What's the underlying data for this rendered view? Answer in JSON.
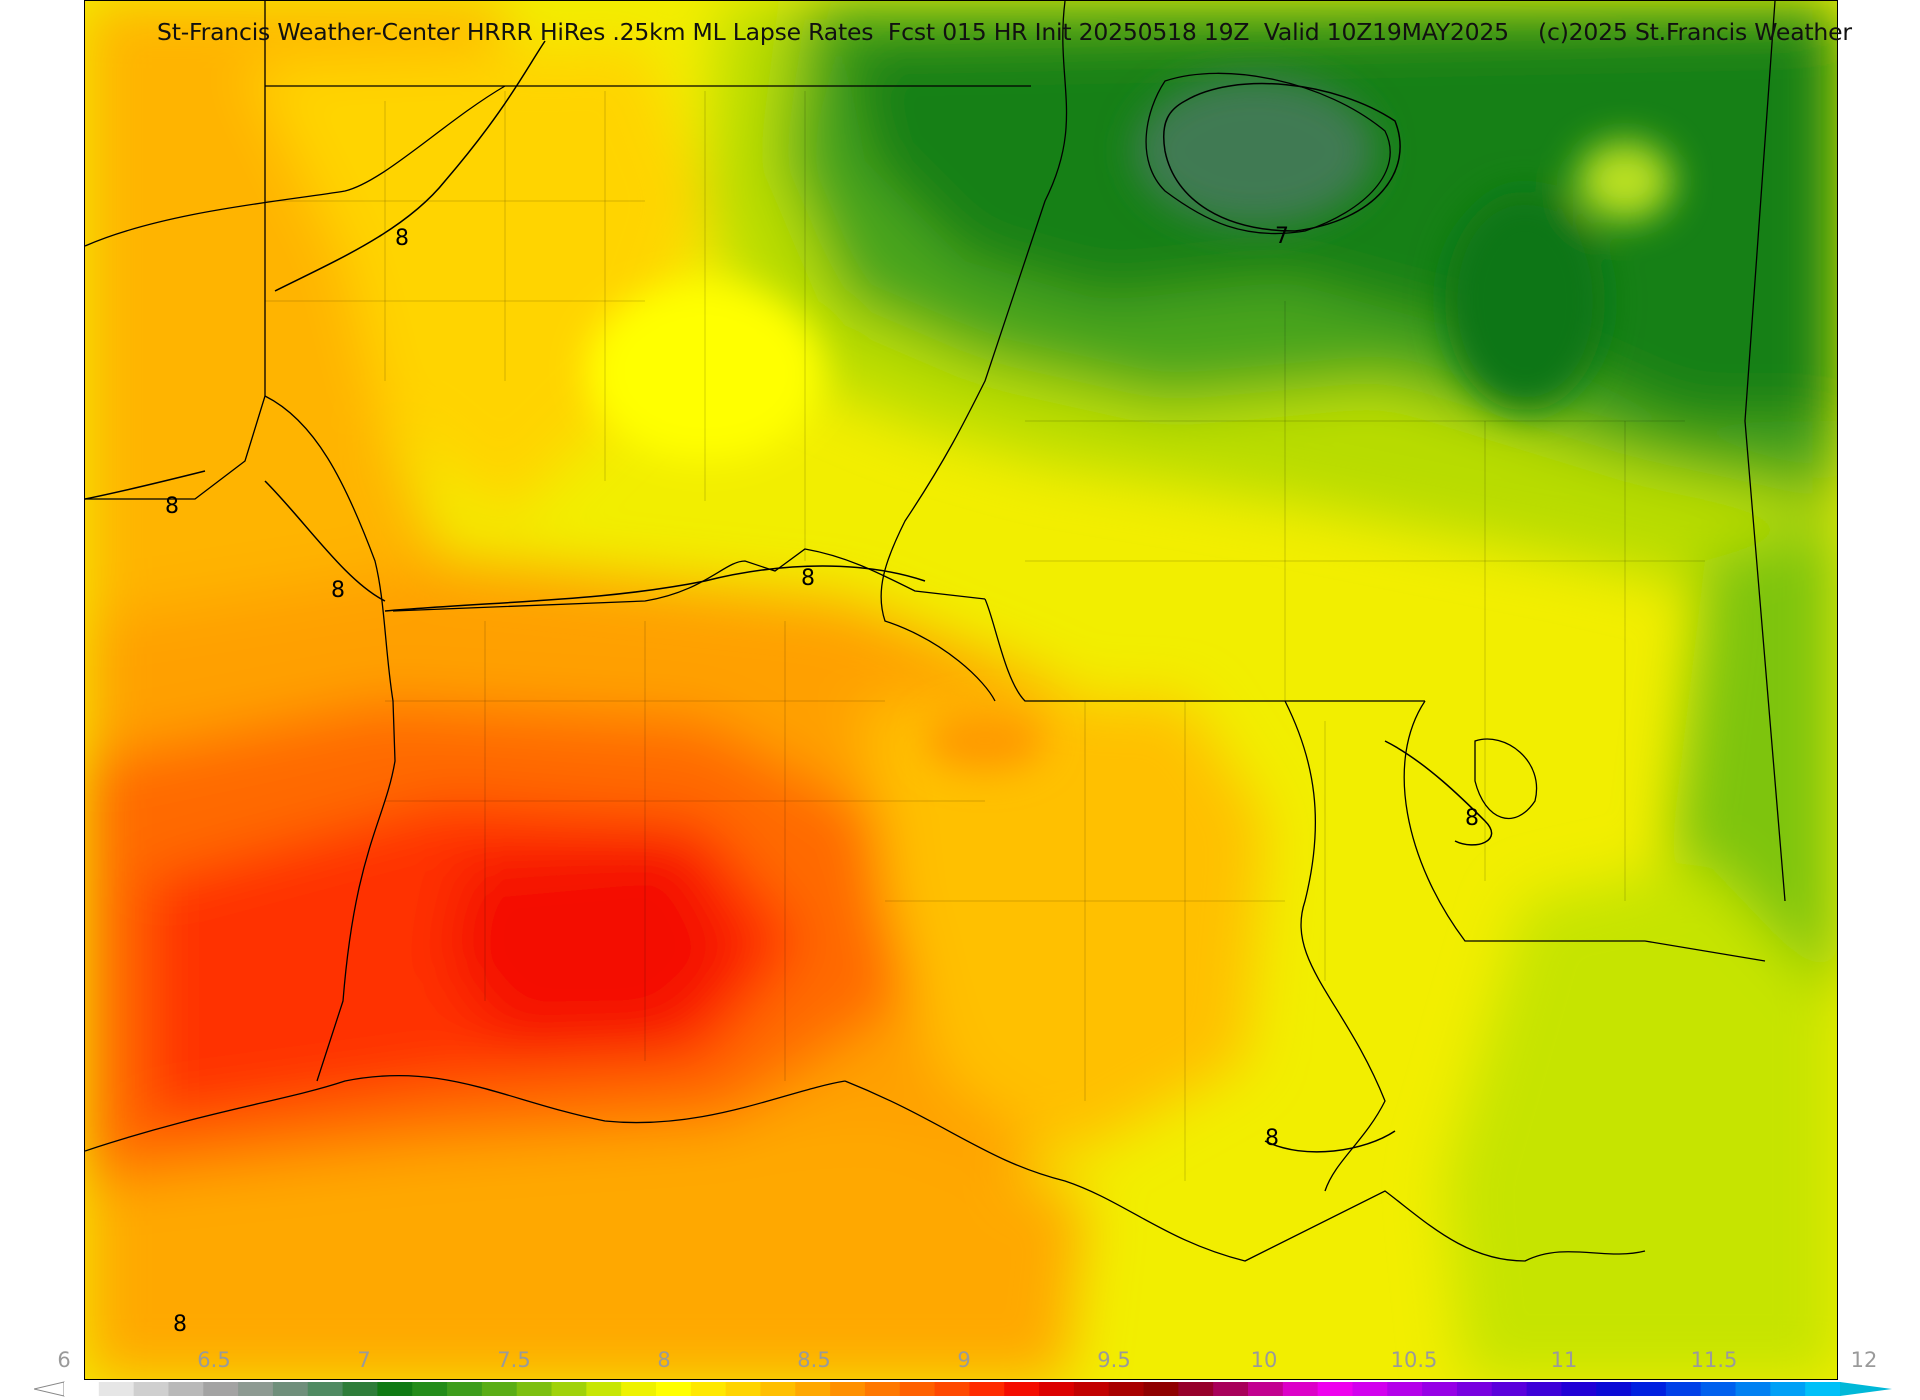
{
  "title": "St-Francis Weather-Center HRRR HiRes .25km ML Lapse Rates  Fcst 015 HR Init 20250518 19Z  Valid 10Z19MAY2025    (c)2025 St.Francis Weather",
  "colorbar": {
    "tick_labels": [
      "6",
      "6.5",
      "7",
      "7.5",
      "8",
      "8.5",
      "9",
      "9.5",
      "10",
      "10.5",
      "11",
      "11.5",
      "12"
    ],
    "min": 6,
    "max": 12,
    "colors": [
      "#ffffff",
      "#e6e6e6",
      "#cfcfcf",
      "#b9b9b9",
      "#a3a3a3",
      "#8d9a92",
      "#6f8f7b",
      "#4f8a62",
      "#2e7d3a",
      "#0f7a14",
      "#238c1a",
      "#3d9d1c",
      "#5aad16",
      "#7cbf10",
      "#a0d20a",
      "#c7e604",
      "#eef200",
      "#ffff00",
      "#ffe800",
      "#ffd400",
      "#ffbf00",
      "#ffa800",
      "#ff9000",
      "#ff7800",
      "#ff6000",
      "#ff4800",
      "#ff2a00",
      "#f40c00",
      "#dc0000",
      "#c20000",
      "#a80000",
      "#8f0000",
      "#96002a",
      "#a8005a",
      "#c20090",
      "#dc00c8",
      "#ee00ee",
      "#d200ee",
      "#b400ea",
      "#9600e6",
      "#7800e0",
      "#5a00dc",
      "#3c00d8",
      "#2000d6",
      "#0a0ad6",
      "#0020e0",
      "#0040e8",
      "#0060ee",
      "#0080f2",
      "#00a0f6",
      "#00c0f8"
    ],
    "arrow_left_color": "#ffffff",
    "arrow_right_color": "#00b8d8"
  },
  "contour_labels": [
    "8",
    "8",
    "8",
    "8",
    "8",
    "7",
    "8",
    "8"
  ],
  "contour_values": [
    8,
    7
  ]
}
